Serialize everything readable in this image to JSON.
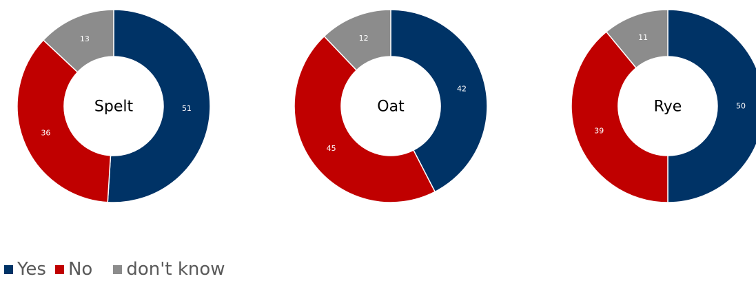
{
  "chart_data": {
    "type": "pie",
    "variant": "donut",
    "categories": [
      "Yes",
      "No",
      "don't know"
    ],
    "colors": [
      "#003366",
      "#C00000",
      "#8C8C8C"
    ],
    "charts": [
      {
        "label": "Spelt",
        "values": [
          51,
          36,
          13
        ]
      },
      {
        "label": "Oat",
        "values": [
          42,
          45,
          12
        ]
      },
      {
        "label": "Rye",
        "values": [
          50,
          39,
          11
        ]
      }
    ],
    "legend": {
      "placement": "bottom-left",
      "items": [
        "Yes",
        "No",
        "don't know"
      ]
    }
  }
}
